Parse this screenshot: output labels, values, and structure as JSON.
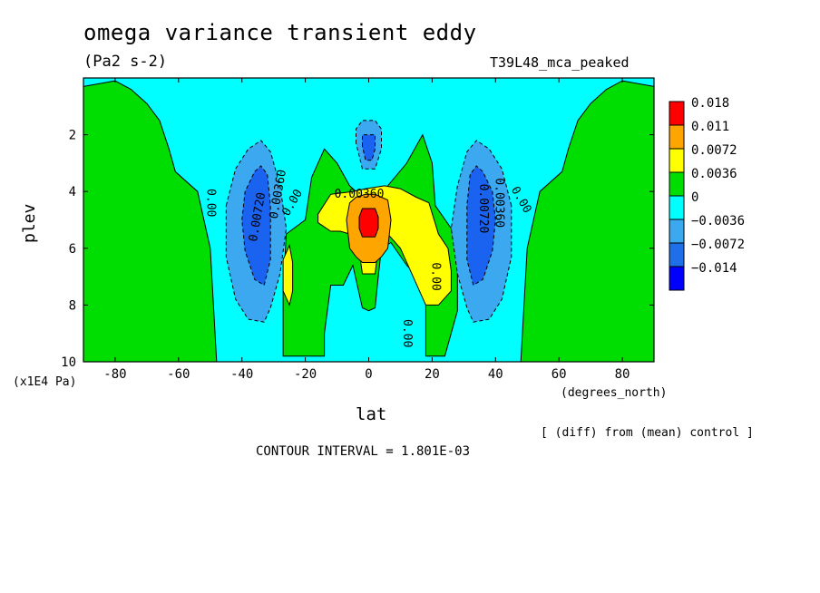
{
  "figure": {
    "title": "omega variance transient eddy",
    "units": "(Pa2 s-2)",
    "run_name": "T39L48_mca_peaked",
    "y_unit": "(x1E4 Pa)",
    "x_unit": "(degrees_north)",
    "diff_note": "[ (diff) from (mean) control ]",
    "contour_interval": "CONTOUR INTERVAL = 1.801E-03"
  },
  "chart_data": {
    "type": "heatmap",
    "title": "omega variance transient eddy",
    "xlabel": "lat",
    "ylabel": "plev",
    "xlim": [
      -90,
      90
    ],
    "ylim": [
      10,
      0
    ],
    "x_ticks": [
      -80,
      -60,
      -40,
      -20,
      0,
      20,
      40,
      60,
      80
    ],
    "x_tick_labels": [
      "-80",
      "-60",
      "-40",
      "-20",
      "0",
      "20",
      "40",
      "60",
      "80"
    ],
    "y_ticks": [
      2,
      4,
      6,
      8,
      10
    ],
    "y_tick_labels": [
      "2",
      "4",
      "6",
      "8",
      "10"
    ],
    "legend": {
      "placement": "right",
      "levels": [
        {
          "label": "0.018",
          "color": "#ff0000"
        },
        {
          "label": "0.011",
          "color": "#ffa500"
        },
        {
          "label": "0.0072",
          "color": "#ffff00"
        },
        {
          "label": "0.0036",
          "color": "#00dd00"
        },
        {
          "label": "0",
          "color": "#00ffff"
        },
        {
          "label": "−0.0036",
          "color": "#3ba8f0"
        },
        {
          "label": "−0.0072",
          "color": "#1f6fe8"
        },
        {
          "label": "−0.014",
          "color": "#0000ff"
        }
      ]
    },
    "colors": {
      "negative_strong": "#1a62f0",
      "negative_mid": "#3ba8f0",
      "near_zero": "#00ffff",
      "positive_low": "#00dd00",
      "positive_mid": "#ffff00",
      "positive_high": "#ffa500",
      "positive_max": "#ff0000"
    },
    "regions": [
      {
        "level": "positive_low",
        "polygon": [
          [
            -90,
            10
          ],
          [
            -90,
            0.3
          ],
          [
            -80,
            0.1
          ],
          [
            -75,
            0.4
          ],
          [
            -70,
            0.9
          ],
          [
            -66,
            1.5
          ],
          [
            -63,
            2.5
          ],
          [
            -61,
            3.3
          ],
          [
            -54,
            4.0
          ],
          [
            -50,
            6.0
          ],
          [
            -48,
            10
          ]
        ]
      },
      {
        "level": "positive_low",
        "polygon": [
          [
            90,
            10
          ],
          [
            90,
            0.3
          ],
          [
            80,
            0.1
          ],
          [
            75,
            0.4
          ],
          [
            70,
            0.9
          ],
          [
            66,
            1.5
          ],
          [
            63,
            2.5
          ],
          [
            61,
            3.3
          ],
          [
            54,
            4.0
          ],
          [
            50,
            6.0
          ],
          [
            48,
            10
          ]
        ]
      },
      {
        "level": "positive_low",
        "polygon": [
          [
            -27,
            9.8
          ],
          [
            -27,
            7.5
          ],
          [
            -26,
            5.5
          ],
          [
            -20,
            5.0
          ],
          [
            -18,
            3.5
          ],
          [
            -14,
            2.5
          ],
          [
            -10,
            3.0
          ],
          [
            -6,
            3.8
          ],
          [
            -2,
            4.2
          ],
          [
            2,
            4.2
          ],
          [
            6,
            3.8
          ],
          [
            12,
            3.0
          ],
          [
            17,
            2.0
          ],
          [
            20,
            3.0
          ],
          [
            21,
            4.5
          ],
          [
            26,
            5.3
          ],
          [
            28,
            6.5
          ],
          [
            28,
            8.2
          ],
          [
            24,
            9.8
          ],
          [
            18,
            9.8
          ],
          [
            18,
            7.3
          ],
          [
            12,
            6.6
          ],
          [
            7,
            5.8
          ],
          [
            4,
            6.0
          ],
          [
            3,
            7.0
          ],
          [
            2,
            8.1
          ],
          [
            0,
            8.2
          ],
          [
            -2,
            8.1
          ],
          [
            -5,
            6.6
          ],
          [
            -8,
            7.3
          ],
          [
            -12,
            7.3
          ],
          [
            -14,
            9.0
          ],
          [
            -14,
            9.8
          ]
        ]
      },
      {
        "level": "positive_mid",
        "polygon": [
          [
            -16,
            4.8
          ],
          [
            -12,
            4.1
          ],
          [
            -5,
            4.0
          ],
          [
            -1,
            3.9
          ],
          [
            5,
            3.8
          ],
          [
            10,
            3.9
          ],
          [
            15,
            4.2
          ],
          [
            19,
            4.4
          ],
          [
            22,
            5.5
          ],
          [
            25,
            6.0
          ],
          [
            26,
            6.8
          ],
          [
            26,
            7.5
          ],
          [
            22,
            8.0
          ],
          [
            18,
            8.0
          ],
          [
            14,
            7.0
          ],
          [
            10,
            6.0
          ],
          [
            6,
            5.5
          ],
          [
            3,
            6.0
          ],
          [
            2,
            6.9
          ],
          [
            0,
            6.9
          ],
          [
            -2,
            6.9
          ],
          [
            -3,
            6.1
          ],
          [
            -6,
            5.5
          ],
          [
            -9,
            5.4
          ],
          [
            -12,
            5.4
          ],
          [
            -16,
            5.1
          ]
        ]
      },
      {
        "level": "positive_mid",
        "polygon": [
          [
            -25,
            8.0
          ],
          [
            -27,
            7.5
          ],
          [
            -27,
            6.4
          ],
          [
            -25,
            5.9
          ],
          [
            -24,
            6.5
          ],
          [
            -24,
            7.5
          ]
        ]
      },
      {
        "level": "positive_high",
        "polygon": [
          [
            -6,
            4.4
          ],
          [
            -4,
            4.2
          ],
          [
            -1,
            4.1
          ],
          [
            2,
            4.1
          ],
          [
            4,
            4.2
          ],
          [
            6,
            4.3
          ],
          [
            7,
            5.0
          ],
          [
            6,
            6.0
          ],
          [
            4,
            6.3
          ],
          [
            2,
            6.5
          ],
          [
            -2,
            6.5
          ],
          [
            -4,
            6.3
          ],
          [
            -6,
            6.0
          ],
          [
            -7,
            5.0
          ]
        ]
      },
      {
        "level": "positive_max",
        "polygon": [
          [
            -3,
            4.9
          ],
          [
            -2,
            4.6
          ],
          [
            2,
            4.6
          ],
          [
            3,
            4.9
          ],
          [
            3,
            5.3
          ],
          [
            2,
            5.6
          ],
          [
            -2,
            5.6
          ],
          [
            -3,
            5.3
          ]
        ]
      },
      {
        "level": "negative_mid",
        "polygon": [
          [
            -45,
            4.5
          ],
          [
            -42,
            3.2
          ],
          [
            -38,
            2.5
          ],
          [
            -34,
            2.2
          ],
          [
            -31,
            2.6
          ],
          [
            -28,
            3.8
          ],
          [
            -26,
            5.3
          ],
          [
            -28,
            6.9
          ],
          [
            -31,
            8.1
          ],
          [
            -33,
            8.6
          ],
          [
            -38,
            8.5
          ],
          [
            -42,
            7.8
          ],
          [
            -45,
            6.3
          ]
        ]
      },
      {
        "level": "negative_mid",
        "polygon": [
          [
            45,
            4.5
          ],
          [
            42,
            3.2
          ],
          [
            38,
            2.5
          ],
          [
            34,
            2.2
          ],
          [
            31,
            2.6
          ],
          [
            28,
            3.8
          ],
          [
            26,
            5.3
          ],
          [
            28,
            6.9
          ],
          [
            31,
            8.1
          ],
          [
            33,
            8.6
          ],
          [
            38,
            8.5
          ],
          [
            42,
            7.8
          ],
          [
            45,
            6.3
          ]
        ]
      },
      {
        "level": "negative_mid",
        "polygon": [
          [
            -4,
            2.3
          ],
          [
            -4,
            1.8
          ],
          [
            -2,
            1.5
          ],
          [
            2,
            1.5
          ],
          [
            4,
            1.8
          ],
          [
            4,
            2.5
          ],
          [
            2,
            3.2
          ],
          [
            -2,
            3.2
          ]
        ]
      },
      {
        "level": "negative_strong",
        "polygon": [
          [
            -40,
            5.0
          ],
          [
            -39,
            4.0
          ],
          [
            -36,
            3.3
          ],
          [
            -34,
            3.1
          ],
          [
            -32,
            3.4
          ],
          [
            -31,
            4.5
          ],
          [
            -31,
            6.4
          ],
          [
            -33,
            7.3
          ],
          [
            -36,
            7.1
          ],
          [
            -39,
            6.1
          ]
        ]
      },
      {
        "level": "negative_strong",
        "polygon": [
          [
            40,
            5.0
          ],
          [
            39,
            4.0
          ],
          [
            36,
            3.3
          ],
          [
            34,
            3.1
          ],
          [
            32,
            3.4
          ],
          [
            31,
            4.5
          ],
          [
            31,
            6.4
          ],
          [
            33,
            7.3
          ],
          [
            36,
            7.1
          ],
          [
            39,
            6.1
          ]
        ]
      },
      {
        "level": "negative_strong",
        "polygon": [
          [
            -2,
            2.4
          ],
          [
            -2,
            2.0
          ],
          [
            2,
            2.0
          ],
          [
            2,
            2.5
          ],
          [
            1,
            2.9
          ],
          [
            -1,
            2.9
          ]
        ]
      }
    ],
    "contour_labels": [
      {
        "text": "0.00",
        "lat": -50,
        "plev": 4.4,
        "rotate": 90
      },
      {
        "text": "0.00720",
        "lat": -35,
        "plev": 4.9,
        "rotate": -80
      },
      {
        "text": "0.00360",
        "lat": -28.5,
        "plev": 4.1,
        "rotate": -80
      },
      {
        "text": "0.00",
        "lat": -24,
        "plev": 4.4,
        "rotate": -60
      },
      {
        "text": "0.00360",
        "lat": -3,
        "plev": 4.1,
        "rotate": 0
      },
      {
        "text": "0.00",
        "lat": 21,
        "plev": 7.0,
        "rotate": 90
      },
      {
        "text": "0.00",
        "lat": 12,
        "plev": 9.0,
        "rotate": 90
      },
      {
        "text": "0.00720",
        "lat": 36,
        "plev": 4.6,
        "rotate": 90
      },
      {
        "text": "0.00360",
        "lat": 41,
        "plev": 4.4,
        "rotate": 90
      },
      {
        "text": "0.00",
        "lat": 48,
        "plev": 4.3,
        "rotate": 60
      }
    ]
  }
}
